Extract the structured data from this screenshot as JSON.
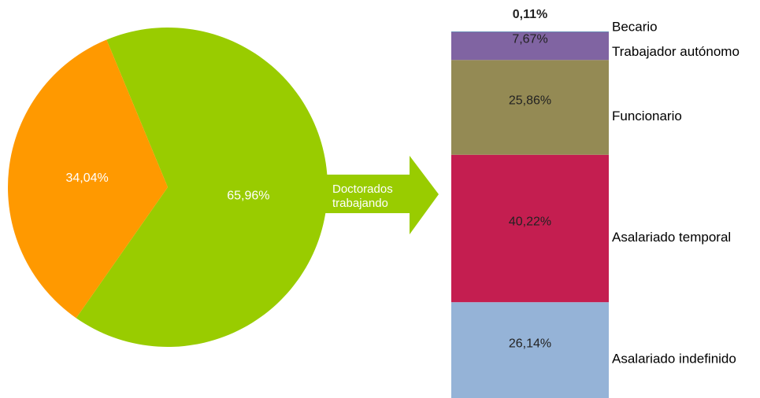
{
  "chart_data": [
    {
      "type": "pie",
      "categories": [
        null,
        null
      ],
      "values": [
        65.96,
        34.04
      ],
      "value_labels": [
        "65,96%",
        "34,04%"
      ],
      "colors": [
        "#99cc00",
        "#ff9900"
      ],
      "annotation": "Doctorados trabajando"
    },
    {
      "type": "stacked_bar",
      "ylim": [
        0,
        100
      ],
      "series": [
        {
          "name": "Asalariado indefinido",
          "color": "#95b3d7",
          "values": [
            26.14
          ],
          "value_labels": [
            "26,14%"
          ]
        },
        {
          "name": "Asalariado temporal",
          "color": "#c41e50",
          "values": [
            40.22
          ],
          "value_labels": [
            "40,22%"
          ]
        },
        {
          "name": "Funcionario",
          "color": "#948a54",
          "values": [
            25.86
          ],
          "value_labels": [
            "25,86%"
          ]
        },
        {
          "name": "Trabajador autónomo",
          "color": "#8064a2",
          "values": [
            7.67
          ],
          "value_labels": [
            "7,67%"
          ]
        },
        {
          "name": "Becario",
          "color": "#4bacc6",
          "values": [
            0.11
          ],
          "value_labels": [
            "0,11%"
          ]
        }
      ]
    }
  ]
}
